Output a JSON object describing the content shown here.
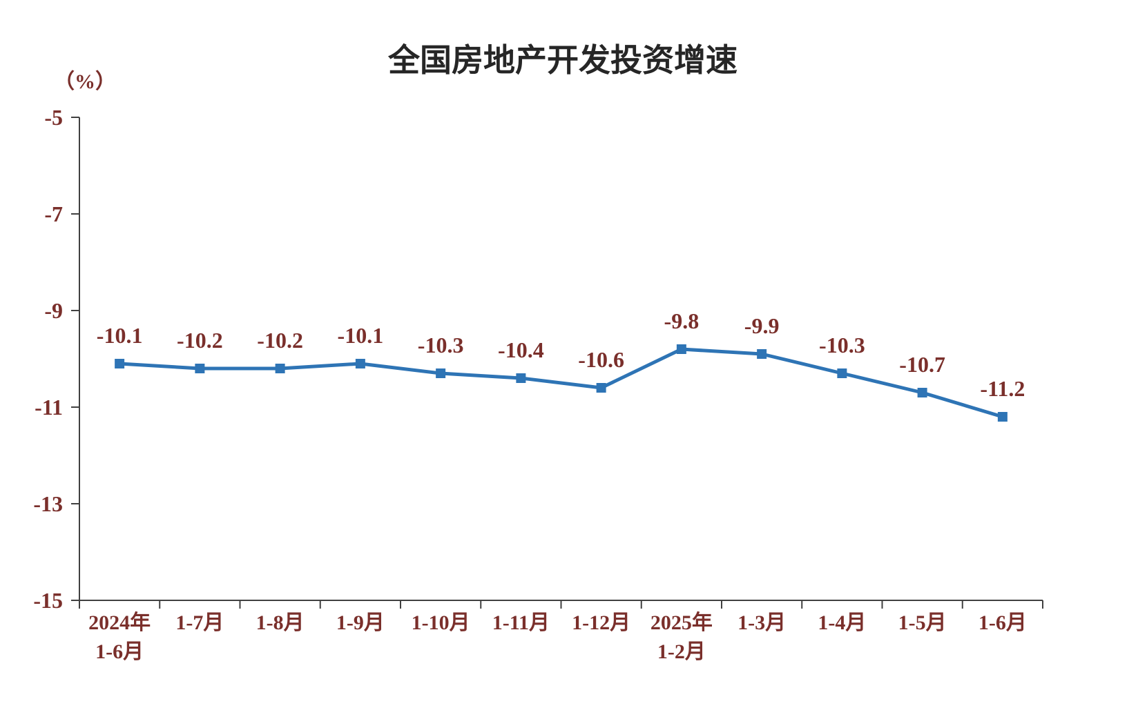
{
  "chart_data": {
    "type": "line",
    "title": "全国房地产开发投资增速",
    "unit_label": "（%）",
    "categories": [
      "2024年\n1-6月",
      "1-7月",
      "1-8月",
      "1-9月",
      "1-10月",
      "1-11月",
      "1-12月",
      "2025年\n1-2月",
      "1-3月",
      "1-4月",
      "1-5月",
      "1-6月"
    ],
    "values": [
      -10.1,
      -10.2,
      -10.2,
      -10.1,
      -10.3,
      -10.4,
      -10.6,
      -9.8,
      -9.9,
      -10.3,
      -10.7,
      -11.2
    ],
    "point_labels": [
      "-10.1",
      "-10.2",
      "-10.2",
      "-10.1",
      "-10.3",
      "-10.4",
      "-10.6",
      "-9.8",
      "-9.9",
      "-10.3",
      "-10.7",
      "-11.2"
    ],
    "ylim": [
      -15,
      -5
    ],
    "yticks": [
      -5,
      -7,
      -9,
      -11,
      -13,
      -15
    ],
    "ytick_labels": [
      "-5",
      "-7",
      "-9",
      "-11",
      "-13",
      "-15"
    ],
    "grid": false,
    "legend": "none",
    "colors": {
      "line": "#2E74B5",
      "marker": "#2E74B5",
      "text": "#7a2f2b",
      "title": "#262626",
      "axis": "#404040"
    }
  }
}
